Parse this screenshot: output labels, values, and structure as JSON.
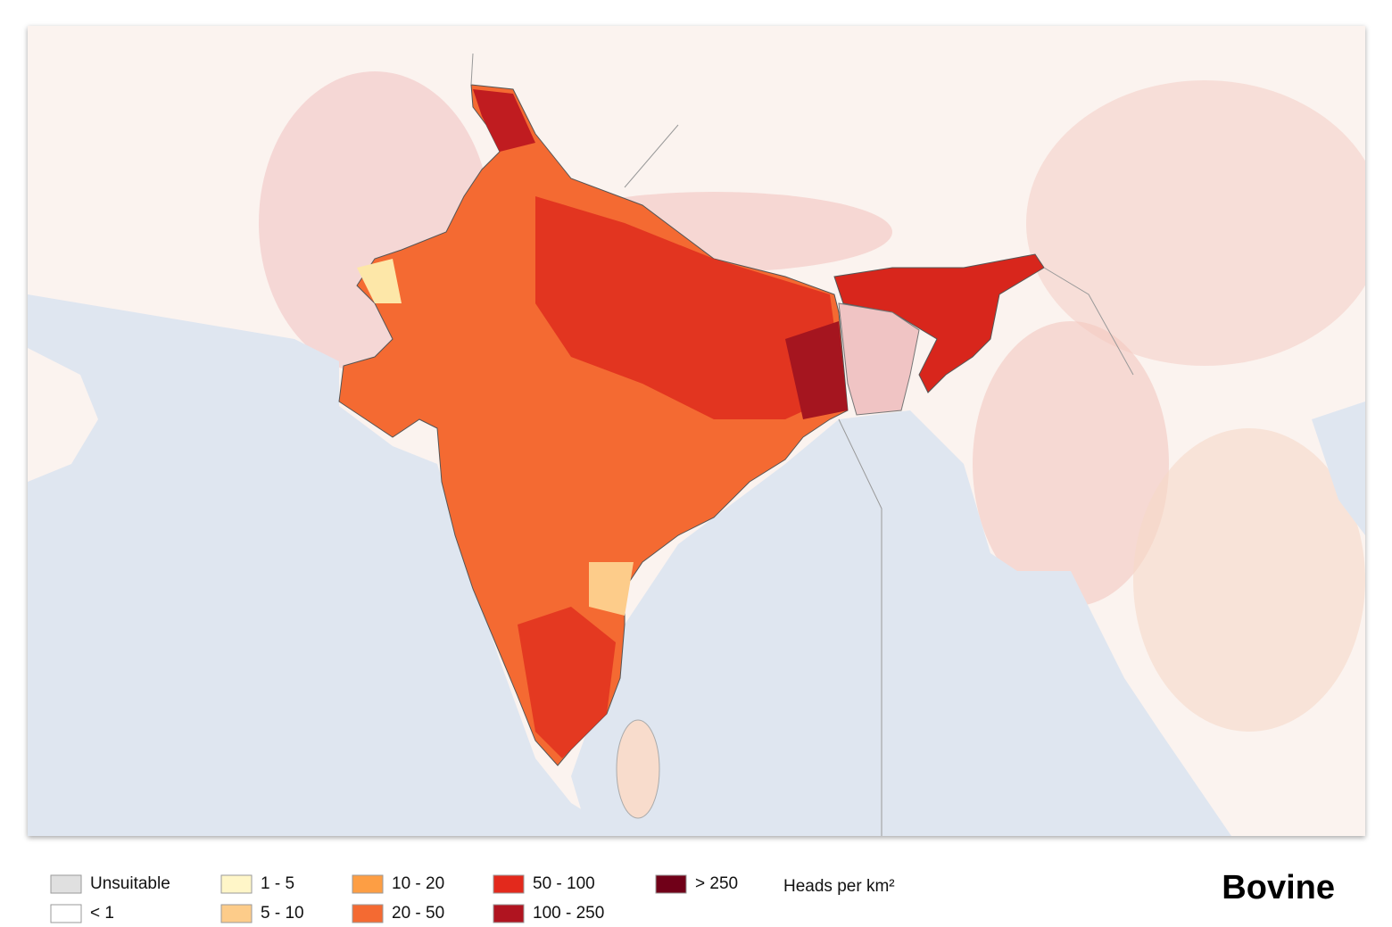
{
  "title": "Bovine",
  "legend": {
    "unit": "Heads per km²",
    "items": [
      {
        "label": "Unsuitable",
        "color": "#e0e0e0"
      },
      {
        "label": "< 1",
        "color": "#ffffff"
      },
      {
        "label": "1 - 5",
        "color": "#fff6c8"
      },
      {
        "label": "5 - 10",
        "color": "#fdcc8a"
      },
      {
        "label": "10 - 20",
        "color": "#fd9e44"
      },
      {
        "label": "20 - 50",
        "color": "#f46a32"
      },
      {
        "label": "50 - 100",
        "color": "#e3291c"
      },
      {
        "label": "100 - 250",
        "color": "#b01420"
      },
      {
        "label": "> 250",
        "color": "#700018"
      }
    ]
  }
}
